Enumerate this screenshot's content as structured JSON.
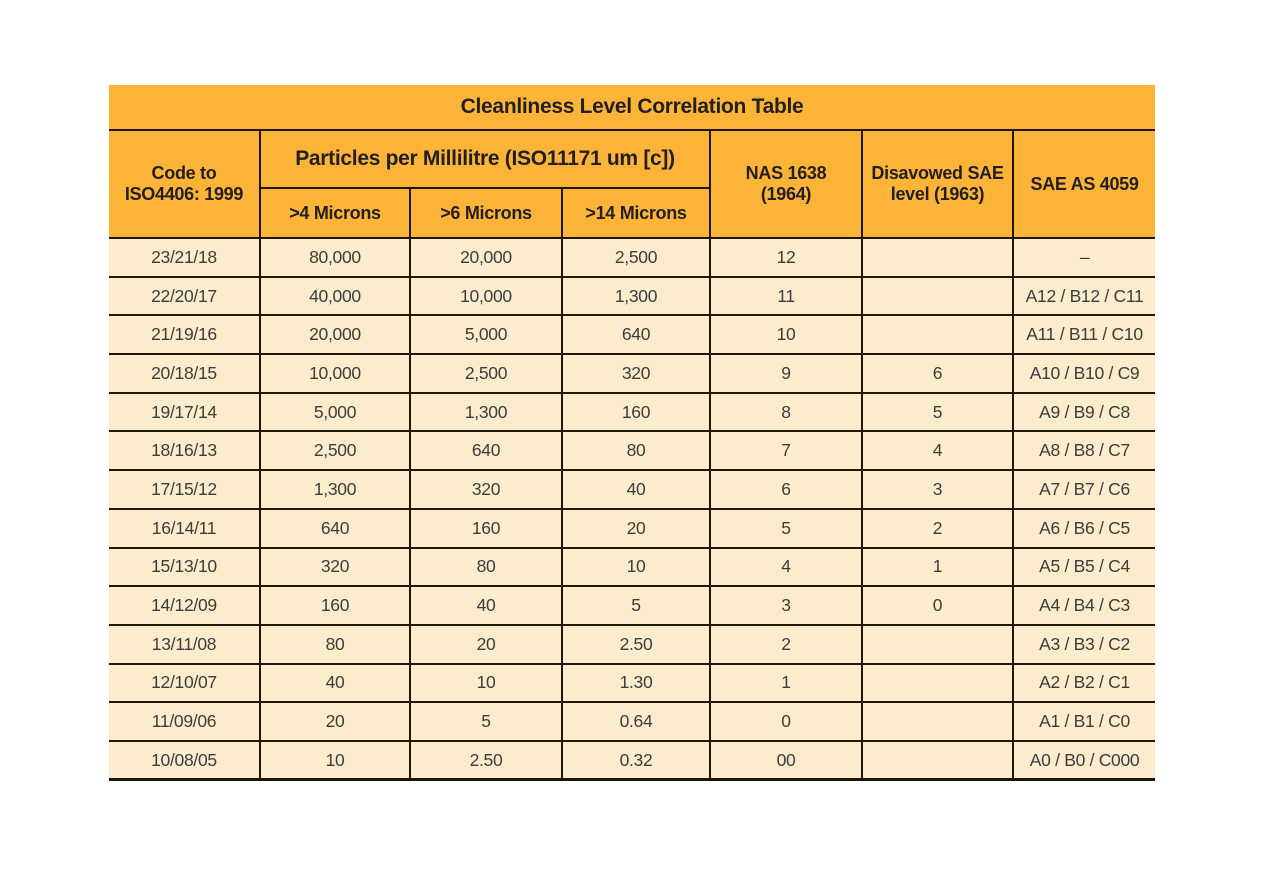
{
  "colors": {
    "header_bg": "#fbb437",
    "row_bg": "#faeccc",
    "border": "#1f1508",
    "header_text": "#231f20",
    "cell_text": "#3d3d3d",
    "page_bg": "#ffffff"
  },
  "table": {
    "title": "Cleanliness Level Correlation Table",
    "headers": {
      "code": "Code to\nISO4406: 1999",
      "particles_group": "Particles per Millilitre (ISO11171 um [c])",
      "micron4": ">4 Microns",
      "micron6": ">6 Microns",
      "micron14": ">14 Microns",
      "nas": "NAS 1638\n(1964)",
      "sae_disavowed": "Disavowed SAE\nlevel (1963)",
      "sae_as": "SAE AS 4059"
    },
    "rows": [
      [
        "23/21/18",
        "80,000",
        "20,000",
        "2,500",
        "12",
        "",
        "–"
      ],
      [
        "22/20/17",
        "40,000",
        "10,000",
        "1,300",
        "11",
        "",
        "A12 / B12 / C11"
      ],
      [
        "21/19/16",
        "20,000",
        "5,000",
        "640",
        "10",
        "",
        "A11 / B11 / C10"
      ],
      [
        "20/18/15",
        "10,000",
        "2,500",
        "320",
        "9",
        "6",
        "A10 / B10 / C9"
      ],
      [
        "19/17/14",
        "5,000",
        "1,300",
        "160",
        "8",
        "5",
        "A9 / B9 / C8"
      ],
      [
        "18/16/13",
        "2,500",
        "640",
        "80",
        "7",
        "4",
        "A8 / B8 / C7"
      ],
      [
        "17/15/12",
        "1,300",
        "320",
        "40",
        "6",
        "3",
        "A7 / B7 / C6"
      ],
      [
        "16/14/11",
        "640",
        "160",
        "20",
        "5",
        "2",
        "A6 / B6 / C5"
      ],
      [
        "15/13/10",
        "320",
        "80",
        "10",
        "4",
        "1",
        "A5 / B5 / C4"
      ],
      [
        "14/12/09",
        "160",
        "40",
        "5",
        "3",
        "0",
        "A4 / B4 / C3"
      ],
      [
        "13/11/08",
        "80",
        "20",
        "2.50",
        "2",
        "",
        "A3 / B3 / C2"
      ],
      [
        "12/10/07",
        "40",
        "10",
        "1.30",
        "1",
        "",
        "A2 / B2 / C1"
      ],
      [
        "11/09/06",
        "20",
        "5",
        "0.64",
        "0",
        "",
        "A1 / B1 / C0"
      ],
      [
        "10/08/05",
        "10",
        "2.50",
        "0.32",
        "00",
        "",
        "A0 / B0 / C000"
      ]
    ]
  }
}
